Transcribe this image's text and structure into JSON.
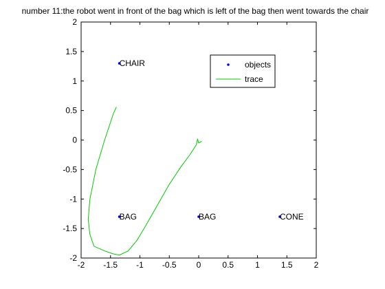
{
  "chart_data": {
    "type": "scatter",
    "title": "number 11:the robot went in front of the bag which is left of the bag then went towards the chair",
    "xlim": [
      -2,
      2
    ],
    "ylim": [
      -2,
      2
    ],
    "x_ticks": [
      -2,
      -1.5,
      -1,
      -0.5,
      0,
      0.5,
      1,
      1.5,
      2
    ],
    "y_ticks": [
      -2,
      -1.5,
      -1,
      -0.5,
      0,
      0.5,
      1,
      1.5,
      2
    ],
    "x_tick_labels": [
      "-2",
      "-1.5",
      "-1",
      "-0.5",
      "0",
      "0.5",
      "1",
      "1.5",
      "2"
    ],
    "y_tick_labels": [
      "-2",
      "-1.5",
      "-1",
      "-0.5",
      "0",
      "0.5",
      "1",
      "1.5",
      "2"
    ],
    "grid": false,
    "legend_position": "top-right",
    "series": [
      {
        "name": "objects",
        "kind": "markers",
        "color": "#0000ff",
        "points": [
          {
            "label": "CHAIR",
            "x": -1.35,
            "y": 1.3
          },
          {
            "label": "BAG",
            "x": -1.35,
            "y": -1.3
          },
          {
            "label": "BAG",
            "x": 0.0,
            "y": -1.3
          },
          {
            "label": "CONE",
            "x": 1.38,
            "y": -1.3
          }
        ]
      },
      {
        "name": "trace",
        "kind": "line",
        "color": "#00cc00",
        "points": [
          [
            0.05,
            -0.02
          ],
          [
            0.0,
            -0.05
          ],
          [
            -0.02,
            0.02
          ],
          [
            -0.04,
            -0.08
          ],
          [
            -0.15,
            -0.25
          ],
          [
            -0.3,
            -0.45
          ],
          [
            -0.5,
            -0.75
          ],
          [
            -0.7,
            -1.1
          ],
          [
            -0.9,
            -1.45
          ],
          [
            -1.05,
            -1.7
          ],
          [
            -1.2,
            -1.88
          ],
          [
            -1.35,
            -1.95
          ],
          [
            -1.45,
            -1.93
          ],
          [
            -1.6,
            -1.88
          ],
          [
            -1.78,
            -1.8
          ],
          [
            -1.85,
            -1.6
          ],
          [
            -1.88,
            -1.35
          ],
          [
            -1.85,
            -1.0
          ],
          [
            -1.75,
            -0.5
          ],
          [
            -1.6,
            0.0
          ],
          [
            -1.45,
            0.45
          ],
          [
            -1.4,
            0.56
          ]
        ]
      }
    ]
  }
}
